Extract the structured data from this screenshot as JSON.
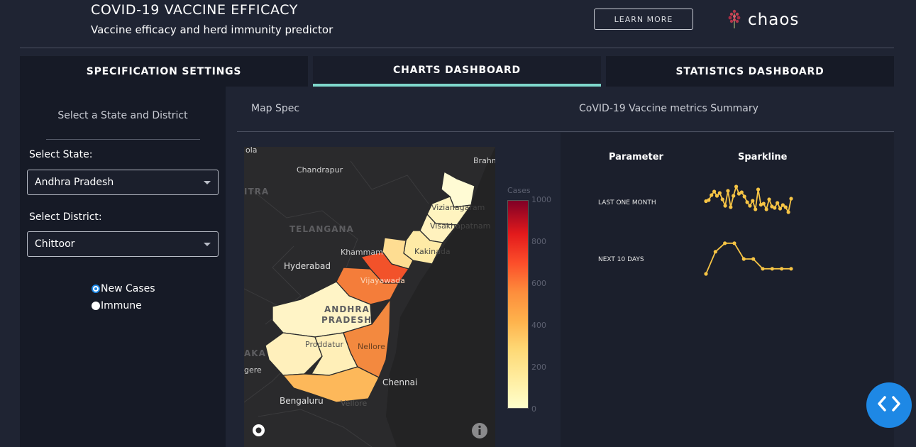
{
  "header": {
    "title": "COVID-19 VACCINE EFFICACY",
    "subtitle": "Vaccine efficacy and herd immunity predictor",
    "learn_more": "LEARN MORE",
    "logo_text": "chaos",
    "logo_icon": "chaos-flower-icon"
  },
  "tabs": [
    {
      "label": "SPECIFICATION SETTINGS",
      "active": false
    },
    {
      "label": "CHARTS DASHBOARD",
      "active": true
    },
    {
      "label": "STATISTICS DASHBOARD",
      "active": false
    }
  ],
  "sidebar": {
    "heading": "Select a State and District",
    "state_label": "Select State:",
    "state_value": "Andhra Pradesh",
    "district_label": "Select District:",
    "district_value": "Chittoor",
    "radio_options": [
      {
        "label": "New Cases",
        "checked": true
      },
      {
        "label": "Immune",
        "checked": false
      }
    ]
  },
  "main": {
    "map_spec_title": "Map Spec",
    "summary_title": "CoVID-19 Vaccine metrics Summary"
  },
  "map": {
    "cities": [
      "Chandrapur",
      "Brahm",
      "Vizianagaram",
      "Visakhapatnam",
      "Kakinada",
      "Khammam",
      "Hyderabad",
      "Vijayawada",
      "Proddatur",
      "Nellore",
      "Chennai",
      "Bengaluru",
      "Vellore",
      "gere",
      "ola"
    ],
    "regions": [
      "TELANGANA",
      "ANDHRA",
      "PRADESH",
      "ITRA",
      "AKA"
    ],
    "colorbar": {
      "title": "Cases",
      "ticks": [
        "1000",
        "800",
        "600",
        "400",
        "200",
        "0"
      ],
      "range": [
        0,
        1000
      ],
      "colors": [
        "#ffffcc",
        "#ffeda0",
        "#fed976",
        "#feb24c",
        "#fd8d3c",
        "#fc4e2a",
        "#e31a1c",
        "#800026"
      ]
    }
  },
  "summary": {
    "col_parameter": "Parameter",
    "col_sparkline": "Sparkline",
    "rows": [
      {
        "param": "LAST ONE MONTH",
        "values": [
          0.45,
          0.48,
          0.62,
          0.72,
          0.6,
          0.68,
          0.5,
          0.32,
          0.74,
          0.28,
          0.6,
          0.86,
          0.66,
          0.7,
          0.58,
          0.42,
          0.32,
          0.46,
          0.22,
          0.78,
          0.35,
          0.38,
          0.22,
          0.5,
          0.3,
          0.26,
          0.4,
          0.24,
          0.34,
          0.28,
          0.14,
          0.52
        ]
      },
      {
        "param": "NEXT 10 DAYS",
        "values": [
          0.1,
          0.62,
          0.82,
          0.82,
          0.45,
          0.45,
          0.22,
          0.22,
          0.22,
          0.22
        ]
      }
    ],
    "spark_color": "#f6c445"
  },
  "fab_icon": "code-brackets-icon"
}
